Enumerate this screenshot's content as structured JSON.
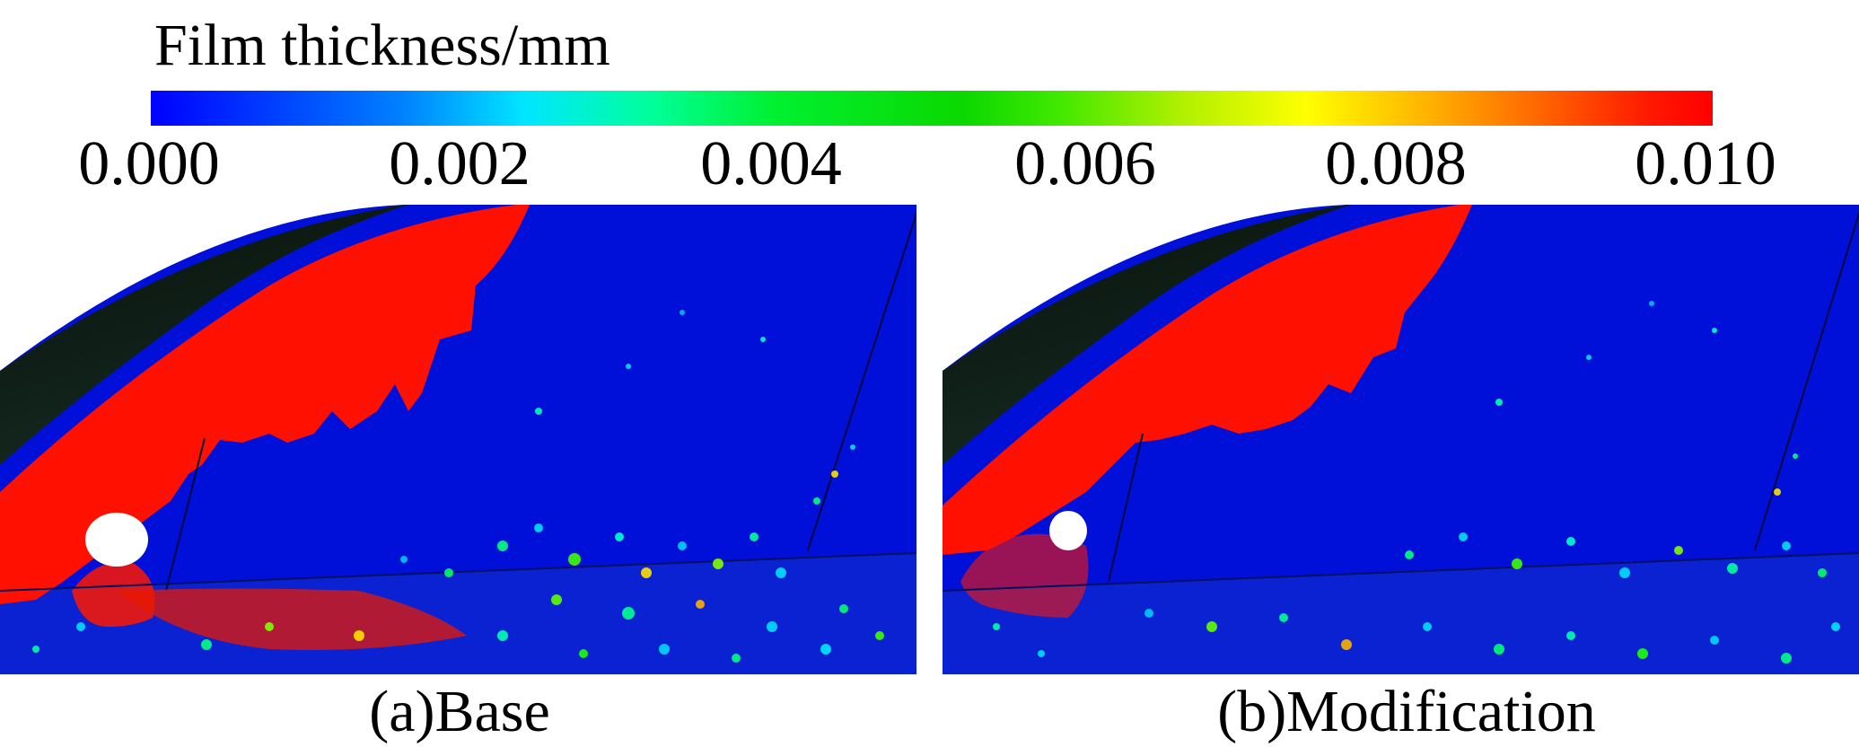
{
  "colorbar": {
    "title": "Film thickness/mm",
    "ticks": [
      "0.000",
      "0.002",
      "0.004",
      "0.006",
      "0.008",
      "0.010"
    ]
  },
  "panels": [
    {
      "caption": "(a)Base"
    },
    {
      "caption": "(b)Modification"
    }
  ]
}
